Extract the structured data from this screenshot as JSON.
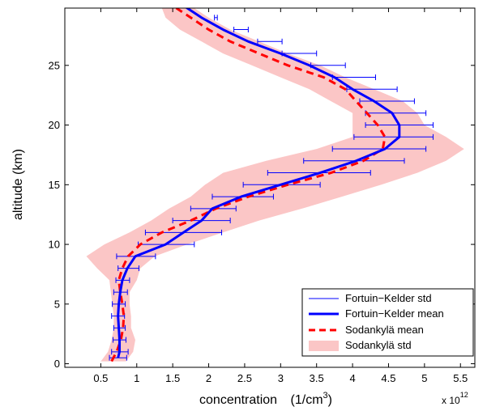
{
  "chart_data": {
    "type": "line",
    "xlabel": "concentration",
    "xlabel_unit_prefix": "(1/cm",
    "xlabel_unit_sup": "3",
    "xlabel_unit_suffix": ")",
    "ylabel": "altitude (km)",
    "x_multiplier_base": "x 10",
    "x_multiplier_exp": "12",
    "xlim": [
      0.0,
      5.7
    ],
    "ylim": [
      -0.3,
      29.8
    ],
    "xticks": [
      0.5,
      1,
      1.5,
      2,
      2.5,
      3,
      3.5,
      4,
      4.5,
      5,
      5.5
    ],
    "xtick_labels": [
      "0.5",
      "1",
      "1.5",
      "2",
      "2.5",
      "3",
      "3.5",
      "4",
      "4.5",
      "5",
      "5.5"
    ],
    "yticks": [
      0,
      5,
      10,
      15,
      20,
      25
    ],
    "ytick_labels": [
      "0",
      "5",
      "10",
      "15",
      "20",
      "25"
    ],
    "legend_position": "bottom-right",
    "grid": false,
    "colors": {
      "fortuin_kelder": "#0000ff",
      "sodankyla_mean": "#ff0000",
      "sodankyla_std": "#fbc6c6"
    },
    "legend": [
      {
        "key": "fk_std",
        "label": "Fortuin−Kelder std"
      },
      {
        "key": "fk_mean",
        "label": "Fortuin−Kelder mean"
      },
      {
        "key": "sod_mean",
        "label": "Sodankylä mean"
      },
      {
        "key": "sod_std",
        "label": "Sodankylä std"
      }
    ],
    "fortuin_kelder_mean": {
      "altitude": [
        0.5,
        1,
        2,
        3,
        4,
        5,
        6,
        7,
        8,
        9,
        10,
        11,
        12,
        13,
        14,
        15,
        16,
        17,
        18,
        19,
        20,
        21,
        22,
        23,
        24,
        25,
        26,
        27,
        28,
        29,
        30
      ],
      "concentration": [
        0.74,
        0.76,
        0.76,
        0.75,
        0.74,
        0.75,
        0.77,
        0.8,
        0.87,
        0.98,
        1.4,
        1.65,
        1.9,
        2.05,
        2.45,
        3.0,
        3.55,
        4.05,
        4.45,
        4.65,
        4.65,
        4.55,
        4.3,
        4.0,
        3.75,
        3.4,
        3.0,
        2.55,
        2.2,
        1.9,
        1.65
      ],
      "std_low": [
        0.62,
        0.65,
        0.67,
        0.68,
        0.65,
        0.66,
        0.68,
        0.71,
        0.74,
        0.72,
        1.02,
        1.12,
        1.5,
        1.75,
        2.05,
        2.48,
        2.82,
        3.32,
        3.72,
        4.02,
        4.18,
        4.18,
        4.1,
        3.92,
        3.72,
        3.42,
        3.02,
        2.68,
        2.35,
        2.08,
        1.88
      ],
      "std_high": [
        0.86,
        0.88,
        0.85,
        0.84,
        0.83,
        0.84,
        0.87,
        0.9,
        1.03,
        1.26,
        1.8,
        2.18,
        2.3,
        2.38,
        2.9,
        3.55,
        4.25,
        4.72,
        5.02,
        5.12,
        5.12,
        5.02,
        4.86,
        4.62,
        4.32,
        3.9,
        3.5,
        3.02,
        2.55,
        2.12,
        1.85
      ]
    },
    "sodankyla_mean": {
      "altitude": [
        0.2,
        1,
        2,
        3,
        4,
        5,
        6,
        7,
        8,
        9,
        10,
        11,
        12,
        13,
        14,
        15,
        16,
        17,
        18,
        19,
        20,
        21,
        22,
        23,
        24,
        25,
        26,
        27,
        28,
        29,
        29.8
      ],
      "concentration": [
        0.65,
        0.72,
        0.78,
        0.81,
        0.82,
        0.8,
        0.77,
        0.75,
        0.8,
        0.88,
        1.05,
        1.35,
        1.75,
        2.1,
        2.55,
        3.1,
        3.7,
        4.15,
        4.42,
        4.45,
        4.35,
        4.2,
        4.05,
        3.9,
        3.6,
        3.1,
        2.7,
        2.3,
        2.0,
        1.75,
        1.55
      ]
    },
    "sodankyla_std": {
      "altitude": [
        0.2,
        1,
        2,
        3,
        4,
        5,
        6,
        7,
        8,
        9,
        10,
        11,
        12,
        13,
        14,
        15,
        16,
        17,
        18,
        19,
        20,
        21,
        22,
        23,
        24,
        25,
        26,
        27,
        28,
        29,
        29.8
      ],
      "low": [
        0.5,
        0.6,
        0.65,
        0.68,
        0.68,
        0.66,
        0.64,
        0.62,
        0.45,
        0.3,
        0.55,
        0.9,
        1.2,
        1.45,
        1.75,
        1.95,
        2.2,
        2.8,
        3.5,
        4.0,
        4.0,
        4.0,
        3.7,
        3.4,
        3.0,
        2.6,
        2.2,
        1.9,
        1.6,
        1.4,
        1.35
      ],
      "high": [
        0.85,
        0.95,
        0.98,
        0.92,
        0.92,
        0.9,
        0.9,
        1.0,
        1.05,
        1.25,
        1.7,
        2.2,
        2.7,
        3.3,
        3.85,
        4.4,
        4.9,
        5.3,
        5.55,
        5.3,
        5.0,
        4.9,
        4.7,
        4.3,
        3.9,
        3.55,
        3.1,
        2.7,
        2.3,
        2.0,
        1.8
      ]
    }
  }
}
